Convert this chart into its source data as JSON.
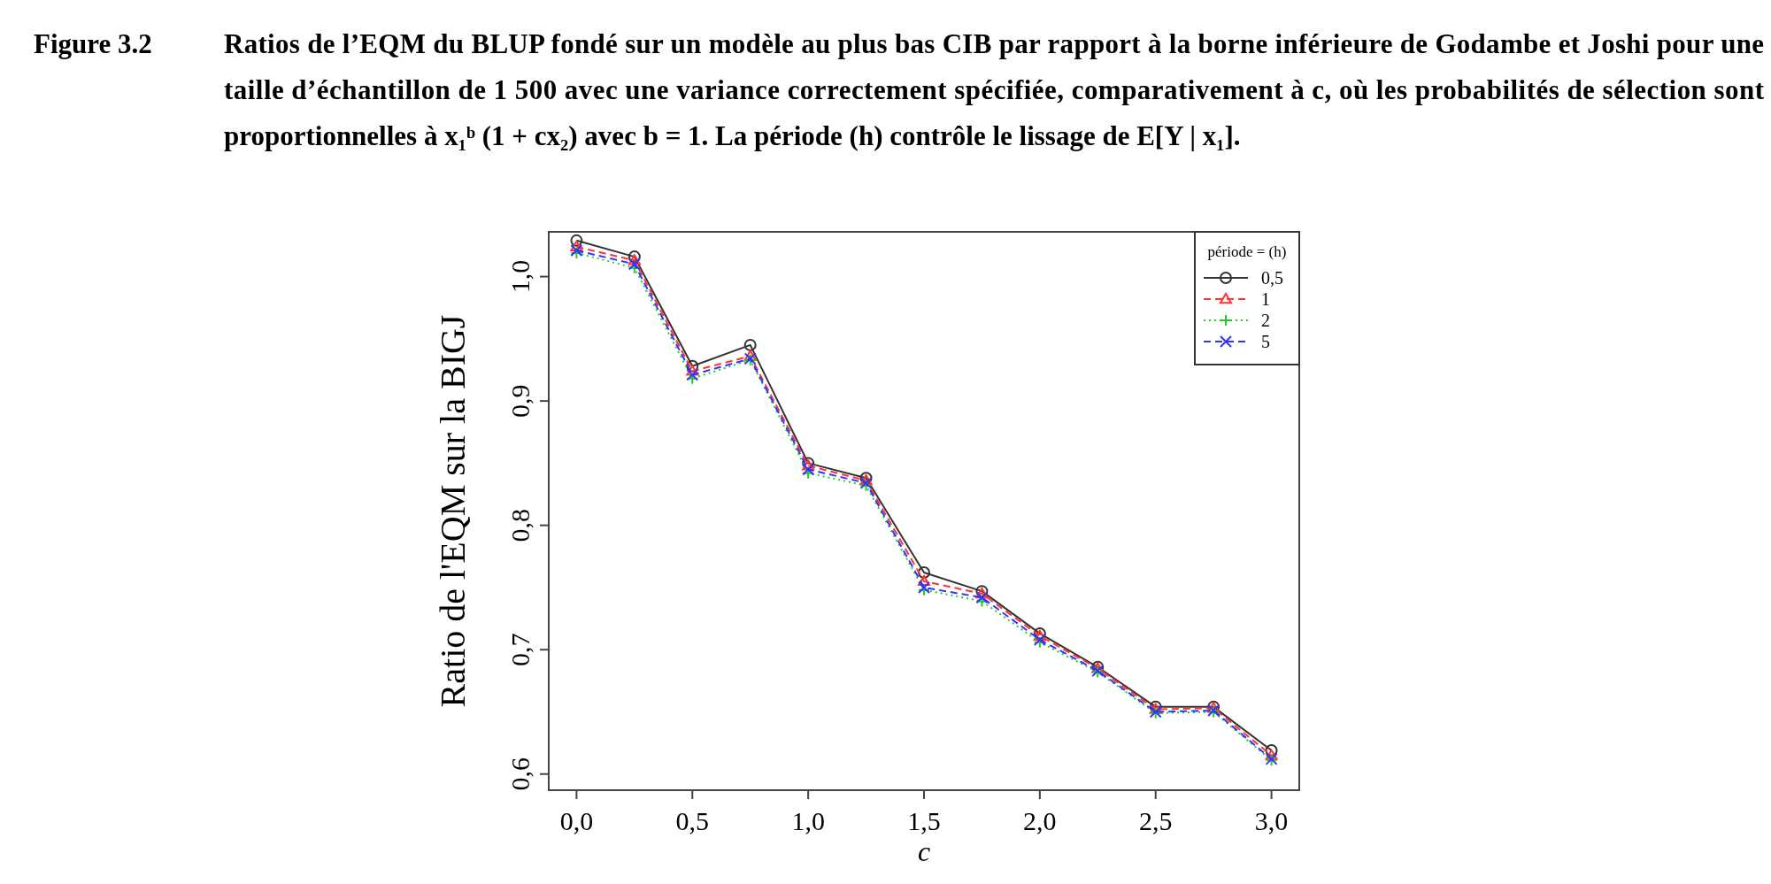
{
  "chart_data": {
    "type": "line",
    "title": "Figure 3.2   Ratios de l’EQM du BLUP fondé sur un modèle au plus bas CIB par rapport à la borne inférieure de Godambe et Joshi pour une taille d’échantillon de 1 500 avec une variance correctement spécifiée, comparativement à c, où les probabilités de sélection sont proportionnelles à x₁ᵇ (1 + cx₂) avec b = 1. La période (h) contrôle le lissage de E[Y | x₁].",
    "xlabel": "c",
    "ylabel": "Ratio de l'EQM sur la BIGJ",
    "legend_title": "période = (h)",
    "x": [
      0,
      0.25,
      0.5,
      0.75,
      1,
      1.25,
      1.5,
      1.75,
      2,
      2.25,
      2.5,
      2.75,
      3
    ],
    "xlim": [
      -0.12,
      3.12
    ],
    "xticks": [
      {
        "value": 0,
        "label": "0,0"
      },
      {
        "value": 0.5,
        "label": "0,5"
      },
      {
        "value": 1,
        "label": "1,0"
      },
      {
        "value": 1.5,
        "label": "1,5"
      },
      {
        "value": 2,
        "label": "2,0"
      },
      {
        "value": 2.5,
        "label": "2,5"
      },
      {
        "value": 3,
        "label": "3,0"
      }
    ],
    "ylim": [
      0.587,
      1.036
    ],
    "yticks": [
      {
        "value": 0.6,
        "label": "0,6"
      },
      {
        "value": 0.7,
        "label": "0,7"
      },
      {
        "value": 0.8,
        "label": "0,8"
      },
      {
        "value": 0.9,
        "label": "0,9"
      },
      {
        "value": 1,
        "label": "1,0"
      }
    ],
    "grid": false,
    "legend": "top right",
    "series": [
      {
        "name": "0,5",
        "color": "#333333",
        "marker": "circle",
        "line_style": "solid",
        "values": [
          1.029,
          1.016,
          0.928,
          0.945,
          0.85,
          0.838,
          0.762,
          0.747,
          0.713,
          0.686,
          0.654,
          0.654,
          0.619
        ]
      },
      {
        "name": "1",
        "color": "#ff3333",
        "marker": "triangle",
        "line_style": "dashed",
        "values": [
          1.024,
          1.013,
          0.924,
          0.936,
          0.848,
          0.836,
          0.755,
          0.745,
          0.711,
          0.685,
          0.652,
          0.653,
          0.615
        ]
      },
      {
        "name": "2",
        "color": "#22cc22",
        "marker": "cross",
        "line_style": "dotted",
        "values": [
          1.019,
          1.007,
          0.918,
          0.933,
          0.842,
          0.832,
          0.748,
          0.739,
          0.706,
          0.682,
          0.649,
          0.65,
          0.611
        ]
      },
      {
        "name": "5",
        "color": "#3333ff",
        "marker": "x",
        "line_style": "dashed",
        "values": [
          1.021,
          1.01,
          0.921,
          0.934,
          0.845,
          0.834,
          0.75,
          0.742,
          0.708,
          0.683,
          0.65,
          0.651,
          0.612
        ]
      }
    ]
  }
}
